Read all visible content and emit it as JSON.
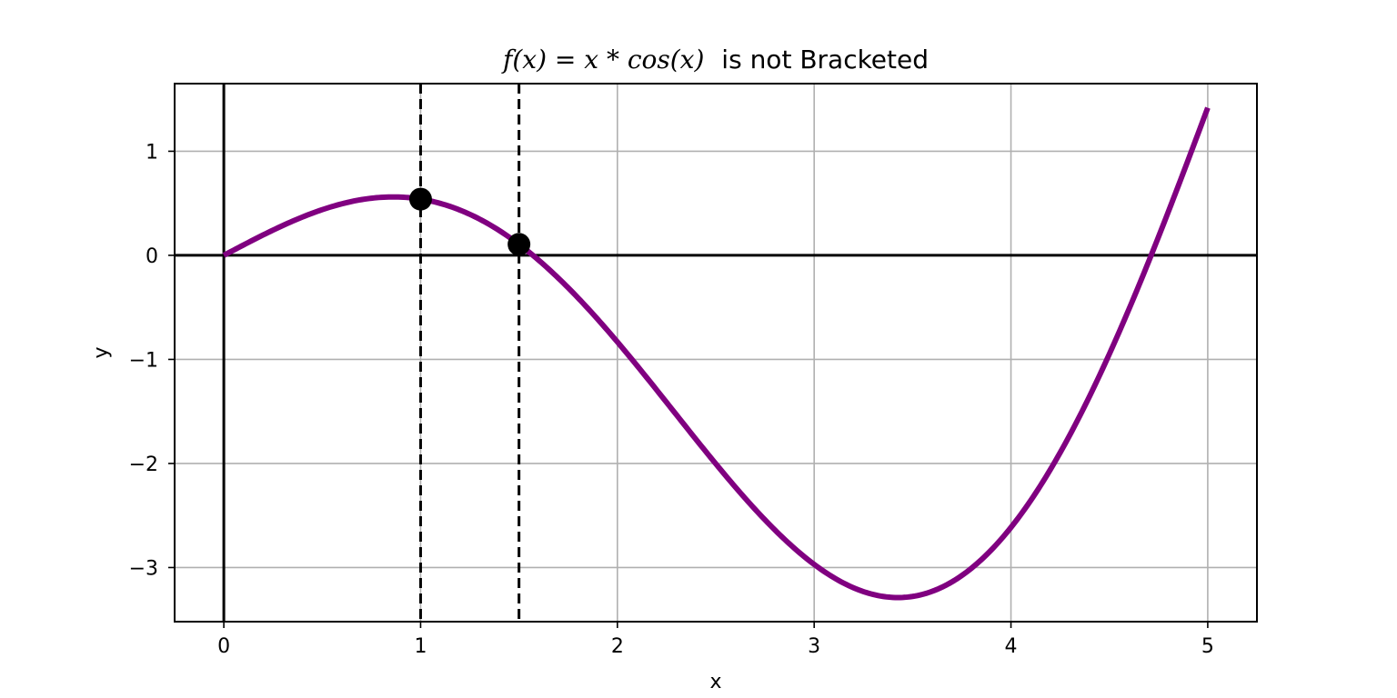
{
  "chart_data": {
    "type": "line",
    "title": {
      "math": "f(x) = x * cos(x)",
      "text": "is not Bracketed"
    },
    "xlabel": "x",
    "ylabel": "y",
    "xlim": [
      -0.25,
      5.25
    ],
    "ylim": [
      -3.52,
      1.65
    ],
    "xticks": [
      0,
      1,
      2,
      3,
      4,
      5
    ],
    "yticks": [
      -3,
      -2,
      -1,
      0,
      1
    ],
    "grid": true,
    "series": [
      {
        "function": "x*cos(x)",
        "x_start": 0,
        "x_end": 5,
        "color": "#800080"
      }
    ],
    "points": [
      {
        "x": 1.0,
        "y": 0.54
      },
      {
        "x": 1.5,
        "y": 0.106
      }
    ],
    "vertical_dashed_lines": [
      1.0,
      1.5
    ],
    "reference_lines": {
      "x0": 0,
      "y0": 0
    }
  }
}
